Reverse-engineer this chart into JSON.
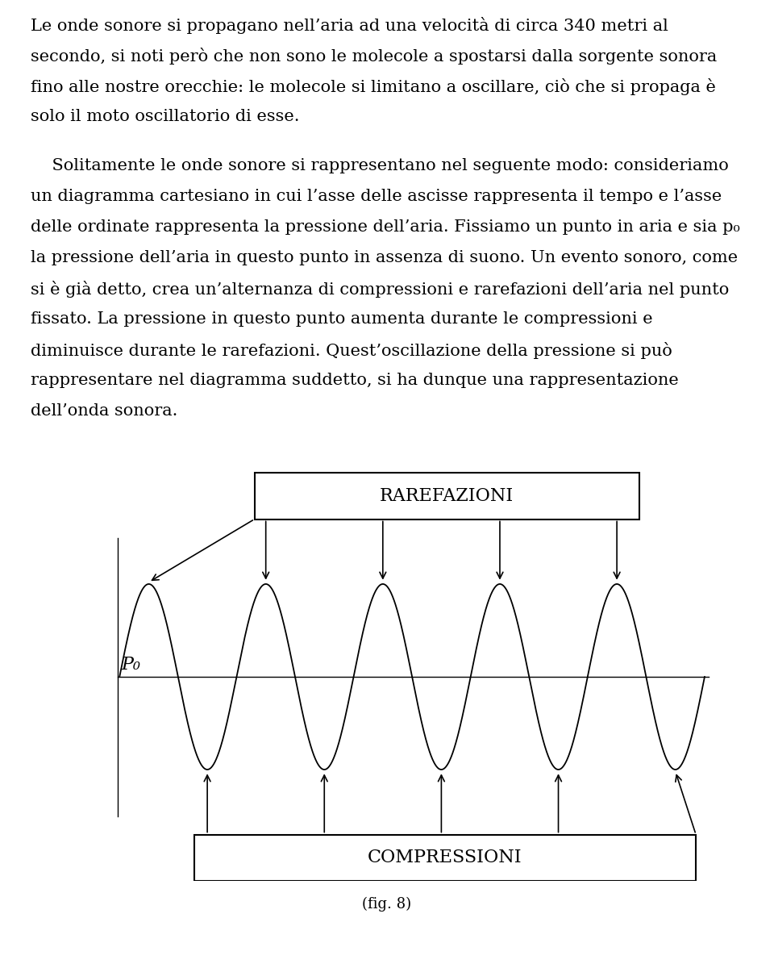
{
  "paragraph1_lines": [
    "Le onde sonore si propagano nell’aria ad una velocità di circa 340 metri al",
    "secondo, si noti però che non sono le molecole a spostarsi dalla sorgente sonora",
    "fino alle nostre orecchie: le molecole si limitano a oscillare, ciò che si propaga è",
    "solo il moto oscillatorio di esse."
  ],
  "paragraph2_lines": [
    "    Solitamente le onde sonore si rappresentano nel seguente modo: consideriamo",
    "un diagramma cartesiano in cui l’asse delle ascisse rappresenta il tempo e l’asse",
    "delle ordinate rappresenta la pressione dell’aria. Fissiamo un punto in aria e sia p₀",
    "la pressione dell’aria in questo punto in assenza di suono. Un evento sonoro, come",
    "si è già detto, crea un’alternanza di compressioni e rarefazioni dell’aria nel punto",
    "fissato. La pressione in questo punto aumenta durante le compressioni e",
    "diminuisce durante le rarefazioni. Quest’oscillazione della pressione si può",
    "rappresentare nel diagramma suddetto, si ha dunque una rappresentazione",
    "dell’onda sonora."
  ],
  "fig_label": "(fig. 8)",
  "rarefazioni_label": "RAREFAZIONI",
  "compressioni_label": "COMPRESSIONI",
  "p0_label": "P₀",
  "wave_color": "#000000",
  "box_color": "#000000",
  "arrow_color": "#000000",
  "background_color": "#ffffff",
  "font_size_text": 15,
  "font_size_labels": 14,
  "font_size_box": 16,
  "font_size_fig": 13
}
